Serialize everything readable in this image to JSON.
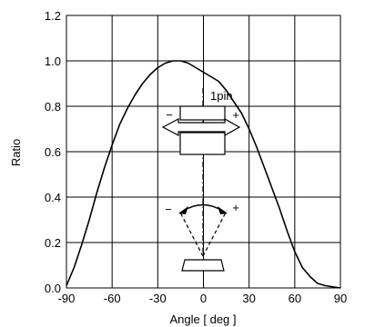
{
  "chart_data": {
    "type": "line",
    "title": "",
    "xlabel": "Angle [ deg ]",
    "ylabel": "Ratio",
    "xlim": [
      -90,
      90
    ],
    "ylim": [
      0,
      1.2
    ],
    "x_ticks": [
      "-90",
      "-60",
      "-30",
      "0",
      "30",
      "60",
      "90"
    ],
    "y_ticks": [
      "0.0",
      "0.2",
      "0.4",
      "0.6",
      "0.8",
      "1.0",
      "1.2"
    ],
    "grid": true,
    "legend": "none",
    "series": [
      {
        "x": [
          -90,
          -85,
          -80,
          -75,
          -70,
          -65,
          -60,
          -55,
          -50,
          -45,
          -40,
          -35,
          -30,
          -25,
          -20,
          -15,
          -10,
          -5,
          0,
          5,
          10,
          15,
          20,
          25,
          30,
          35,
          40,
          45,
          50,
          55,
          60,
          65,
          70,
          75,
          80,
          85,
          90
        ],
        "y": [
          0.01,
          0.09,
          0.19,
          0.3,
          0.42,
          0.53,
          0.63,
          0.72,
          0.79,
          0.85,
          0.9,
          0.94,
          0.97,
          0.99,
          1.0,
          1.0,
          0.99,
          0.97,
          0.95,
          0.93,
          0.91,
          0.87,
          0.82,
          0.77,
          0.7,
          0.62,
          0.53,
          0.44,
          0.35,
          0.25,
          0.16,
          0.09,
          0.05,
          0.02,
          0.01,
          0.005,
          0.0
        ]
      }
    ],
    "annotations": {
      "pin_label": "1pin",
      "plus": "+",
      "minus": "−"
    }
  }
}
